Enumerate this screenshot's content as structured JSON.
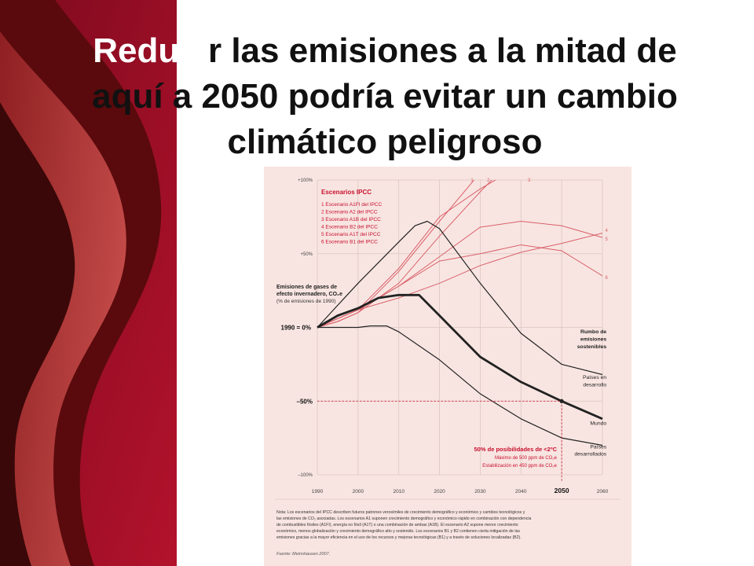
{
  "slide": {
    "title_line1_white": "Reduci",
    "title_line1_rest": "r las emisiones a la mitad de",
    "title_line2": "aquí a 2050 podría evitar un cambio",
    "title_line3": "climático peligroso"
  },
  "colors": {
    "panel_bg": "#f8e5e1",
    "accent_red": "#c8102e",
    "scenario_line": "#d9606a",
    "dark_line": "#222222",
    "grid": "#dcc5c1",
    "slide_red": "#a0102a",
    "slide_dark": "#3a0808"
  },
  "chart_data": {
    "type": "line",
    "title": "",
    "ylabel": "Emisiones de gases de efecto invernadero, CO₂e",
    "ylabel_line1": "Emisiones de gases de",
    "ylabel_line2": "efecto invernadero, CO₂e",
    "ylabel_unit": "(% de emisiones de 1990)",
    "x_ticks": [
      1990,
      2000,
      2010,
      2020,
      2030,
      2040,
      2050,
      2060
    ],
    "x_tick_labels": [
      "1990",
      "2000",
      "2010",
      "2020",
      "2030",
      "2040",
      "2050",
      "2060"
    ],
    "xlim": [
      1990,
      2060
    ],
    "ylim": [
      -100,
      100
    ],
    "y_ticks": [
      100,
      50,
      0,
      -50,
      -100
    ],
    "y_tick_labels": [
      "+100%",
      "+50%",
      "1990 = 0%",
      "–50%",
      "–100%"
    ],
    "grid": true,
    "legend_title": "Escenarios IPCC",
    "legend_items": [
      "1 Escenario A1FI del IPCC",
      "2 Escenario A2 del IPCC",
      "3 Escenario A1B del IPCC",
      "4 Escenario B2 del IPCC",
      "5 Escenario A1T del IPCC",
      "6 Escenario B1 del IPCC"
    ],
    "legend_placement": "top-left",
    "scenario_series": [
      {
        "name": "1",
        "x": [
          1990,
          1995,
          2000,
          2010,
          2020,
          2030,
          2040
        ],
        "y": [
          0,
          4,
          10,
          38,
          72,
          105,
          135
        ]
      },
      {
        "name": "2",
        "x": [
          1990,
          1995,
          2000,
          2010,
          2020,
          2030,
          2040,
          2047
        ],
        "y": [
          0,
          4,
          10,
          30,
          62,
          92,
          120,
          133
        ]
      },
      {
        "name": "3",
        "x": [
          1990,
          2000,
          2010,
          2020,
          2030,
          2040,
          2050
        ],
        "y": [
          0,
          12,
          40,
          75,
          94,
          110,
          112
        ]
      },
      {
        "name": "4",
        "x": [
          1990,
          2000,
          2010,
          2020,
          2030,
          2040,
          2050,
          2060
        ],
        "y": [
          0,
          12,
          20,
          30,
          42,
          51,
          57,
          64
        ]
      },
      {
        "name": "5",
        "x": [
          1990,
          2000,
          2010,
          2020,
          2030,
          2040,
          2050,
          2060
        ],
        "y": [
          0,
          12,
          28,
          48,
          68,
          72,
          69,
          61
        ]
      },
      {
        "name": "6",
        "x": [
          1990,
          2000,
          2010,
          2020,
          2030,
          2040,
          2050,
          2060
        ],
        "y": [
          0,
          12,
          28,
          45,
          50,
          56,
          52,
          35
        ]
      }
    ],
    "scenario_end_labels": [
      {
        "text": "1",
        "x": 2028,
        "y": 100
      },
      {
        "text": "2",
        "x": 2032,
        "y": 100
      },
      {
        "text": "3",
        "x": 2042,
        "y": 100
      },
      {
        "text": "4",
        "x": 2061,
        "y": 66
      },
      {
        "text": "5",
        "x": 2061,
        "y": 60
      },
      {
        "text": "6",
        "x": 2061,
        "y": 34
      }
    ],
    "dark_series": [
      {
        "name": "Rumbo de emisiones sostenibles",
        "x": [
          1990,
          1995,
          2000,
          2010,
          2014,
          2017,
          2020,
          2030,
          2040,
          2050,
          2060
        ],
        "y": [
          0,
          15,
          30,
          58,
          69,
          72,
          67,
          30,
          -4,
          -25,
          -32
        ],
        "width": 1.2
      },
      {
        "name": "Mundo",
        "x": [
          1990,
          1995,
          2000,
          2005,
          2010,
          2015,
          2020,
          2030,
          2040,
          2050,
          2060
        ],
        "y": [
          0,
          8,
          13,
          20,
          22,
          22,
          8,
          -20,
          -37,
          -50,
          -62
        ],
        "width": 2.8
      },
      {
        "name": "Países desarrollados",
        "x": [
          1990,
          1995,
          2000,
          2003,
          2007,
          2010,
          2020,
          2030,
          2040,
          2050,
          2060
        ],
        "y": [
          0,
          0,
          0,
          1,
          1,
          -3,
          -22,
          -45,
          -62,
          -75,
          -80
        ],
        "width": 1.2
      }
    ],
    "annotations": [
      {
        "text": "Rumbo de",
        "x": 2061,
        "y": -4,
        "anchor": "end",
        "bold": true
      },
      {
        "text": "emisiones",
        "x": 2061,
        "y": -9,
        "anchor": "end",
        "bold": true
      },
      {
        "text": "sostenibles",
        "x": 2061,
        "y": -14,
        "anchor": "end",
        "bold": true
      },
      {
        "text": "Países en",
        "x": 2061,
        "y": -35,
        "anchor": "end",
        "bold": false
      },
      {
        "text": "desarrollo",
        "x": 2061,
        "y": -40,
        "anchor": "end",
        "bold": false
      },
      {
        "text": "Mundo",
        "x": 2061,
        "y": -66,
        "anchor": "end",
        "bold": false
      },
      {
        "text": "Países",
        "x": 2061,
        "y": -82,
        "anchor": "end",
        "bold": false
      },
      {
        "text": "desarrollados",
        "x": 2061,
        "y": -87,
        "anchor": "end",
        "bold": false
      }
    ],
    "target": {
      "x": 2050,
      "y": -50,
      "title": "50% de posibilidades de <2ºC",
      "line1": "Máximo de 500 ppm de CO₂e",
      "line2": "Estabilización en 450 ppm de CO₂e"
    },
    "note_lines": [
      "Nota: Los escenarios del IPCC describen futuros patrones verosímiles de crecimiento demográfico y económico y cambios tecnológicos y",
      "las emisiones de CO₂ asociadas. Los escenarios A1 suponen crecimiento demográfico y económico rápido en combinación con dependencia",
      "de combustibles fósiles (A1FI), energía no fósil (A1T) o una combinación de ambas (A1B). El escenario A2 supone menor crecimiento",
      "económico, menos globalización y crecimiento demográfico alto y sostenido. Los escenarios B1 y B2 contienen cierta mitigación de las",
      "emisiones gracias a la mayor eficiencia en el uso de los recursos y mejoras tecnológicas (B1) y a través de soluciones localizadas (B2)."
    ],
    "source": "Fuente: Meinshausen 2007."
  }
}
